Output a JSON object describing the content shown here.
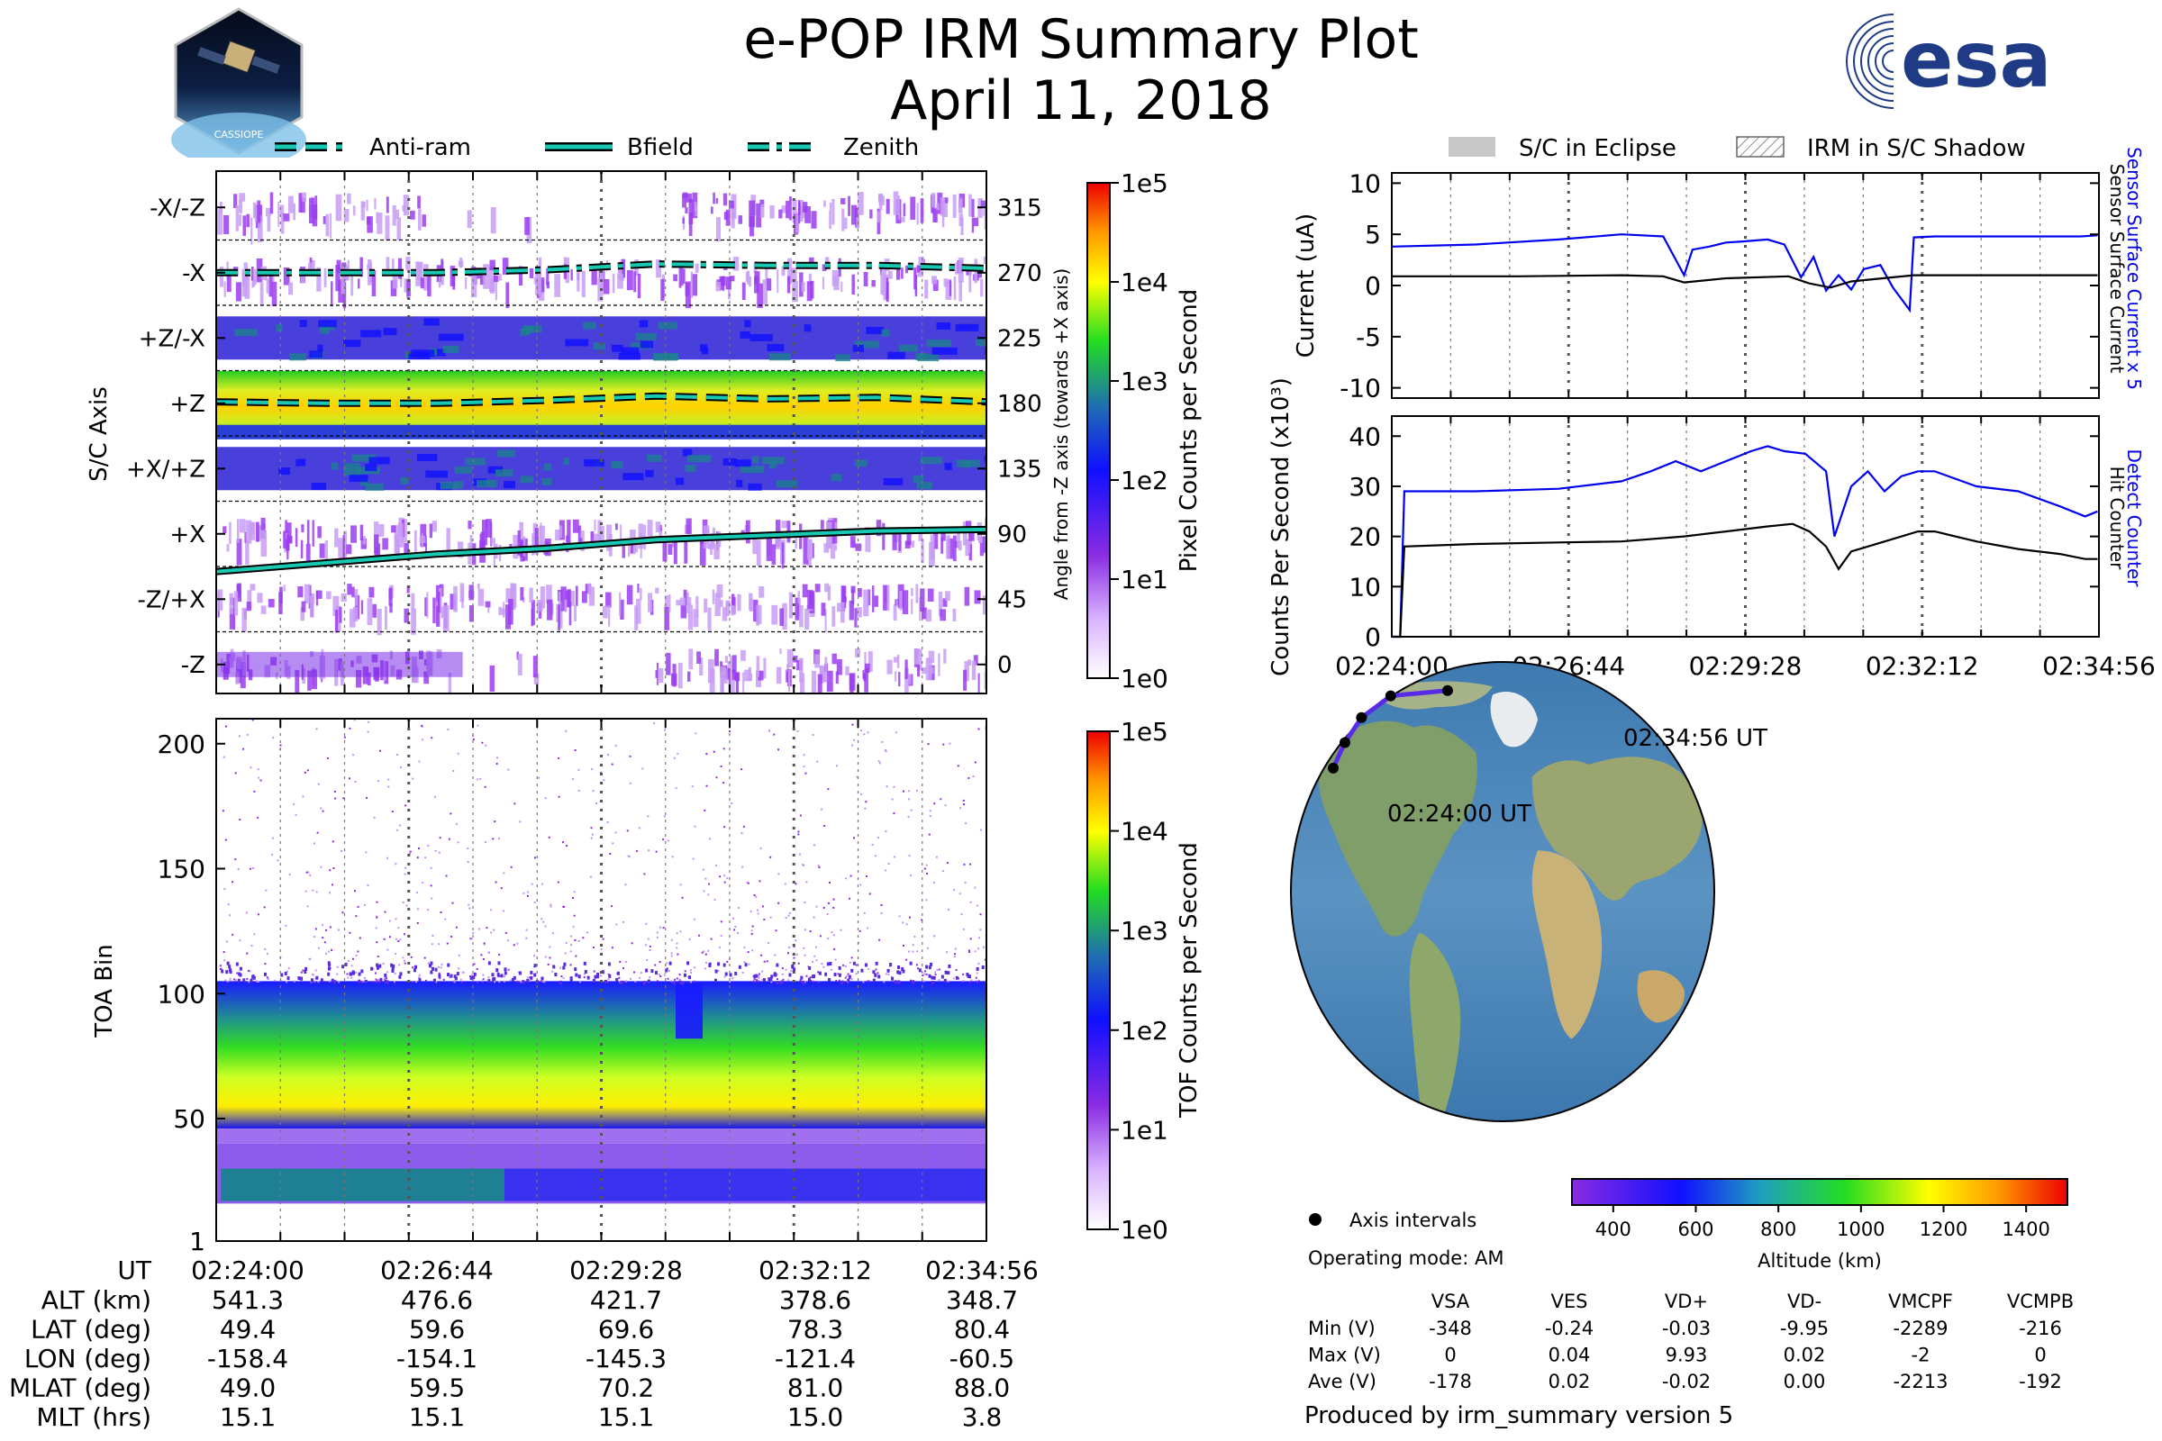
{
  "header": {
    "title": "e-POP IRM Summary Plot",
    "date": "April 11, 2018"
  },
  "logos": {
    "left_text": "CASSIOPE",
    "esa_text": "esa"
  },
  "colors": {
    "cyan_line": "#17c9b3",
    "blue_line": "#0000ee",
    "esa_blue": "#1f3b86"
  },
  "legend_top": {
    "items": [
      "Anti-ram",
      "Bfield",
      "Zenith"
    ]
  },
  "legend_right": {
    "items": [
      "S/C in Eclipse",
      "IRM in S/C Shadow"
    ]
  },
  "time_ticks": [
    "02:24:00",
    "02:26:44",
    "02:29:28",
    "02:32:12",
    "02:34:56"
  ],
  "ephemeris": {
    "ut_label": "UT",
    "rows": [
      {
        "label": "ALT (km)",
        "values": [
          "541.3",
          "476.6",
          "421.7",
          "378.6",
          "348.7"
        ]
      },
      {
        "label": "LAT (deg)",
        "values": [
          "49.4",
          "59.6",
          "69.6",
          "78.3",
          "80.4"
        ]
      },
      {
        "label": "LON (deg)",
        "values": [
          "-158.4",
          "-154.1",
          "-145.3",
          "-121.4",
          "-60.5"
        ]
      },
      {
        "label": "MLAT (deg)",
        "values": [
          "49.0",
          "59.5",
          "70.2",
          "81.0",
          "88.0"
        ]
      },
      {
        "label": "MLT (hrs)",
        "values": [
          "15.1",
          "15.1",
          "15.1",
          "15.0",
          "3.8"
        ]
      }
    ]
  },
  "chart_data": [
    {
      "type": "heatmap",
      "name": "pixel-counts",
      "ylabel": "S/C Axis",
      "y_categories": [
        "-Z",
        "-Z/+X",
        "+X",
        "+X/+Z",
        "+Z",
        "+Z/-X",
        "-X",
        "-X/-Z"
      ],
      "right_axis_label": "Angle from -Z axis (towards +X axis)",
      "right_ticks": [
        0,
        45,
        90,
        135,
        180,
        225,
        270,
        315
      ],
      "right_ylim": [
        -20,
        340
      ],
      "colorbar_label": "Pixel Counts per Second",
      "colorbar_ticks": [
        "1e0",
        "1e1",
        "1e2",
        "1e3",
        "1e4",
        "1e5"
      ],
      "lines": [
        {
          "name": "Anti-ram",
          "y_deg": [
            181,
            180,
            180,
            182,
            185,
            183,
            184,
            181
          ]
        },
        {
          "name": "Bfield",
          "y_deg": [
            64,
            70,
            76,
            80,
            86,
            89,
            92,
            93
          ]
        },
        {
          "name": "Zenith",
          "y_deg": [
            270,
            270,
            270,
            272,
            276,
            275,
            275,
            273
          ]
        }
      ]
    },
    {
      "type": "heatmap",
      "name": "toa-spectrogram",
      "ylabel": "TOA Bin",
      "y_ticks": [
        1,
        50,
        100,
        150,
        200
      ],
      "ylim": [
        1,
        210
      ],
      "colorbar_label": "TOF Counts per Second",
      "colorbar_ticks": [
        "1e0",
        "1e1",
        "1e2",
        "1e3",
        "1e4",
        "1e5"
      ]
    },
    {
      "type": "line",
      "name": "current",
      "ylabel": "Current (uA)",
      "ylim": [
        -11,
        11
      ],
      "y_ticks": [
        -10,
        -5,
        0,
        5,
        10
      ],
      "right_labels": [
        "Sensor Surface Current x 5",
        "Sensor Surface Current"
      ],
      "series": [
        {
          "name": "Sensor Surface Current x 5",
          "t": [
            0,
            2,
            4,
            5.5,
            6.5,
            7,
            7.2,
            7.6,
            8,
            8.4,
            9,
            9.4,
            9.8,
            10.1,
            10.4,
            10.7,
            11,
            11.3,
            11.7,
            12,
            12.4,
            12.5,
            13,
            14,
            15.5,
            16.5,
            16.9
          ],
          "values": [
            3.8,
            4.0,
            4.5,
            5.0,
            4.8,
            1.0,
            3.5,
            3.8,
            4.2,
            4.3,
            4.5,
            4.0,
            0.8,
            2.8,
            -0.5,
            1.0,
            -0.4,
            1.6,
            2.0,
            -0.2,
            -2.4,
            4.7,
            4.8,
            4.8,
            4.8,
            4.8,
            4.9
          ]
        },
        {
          "name": "Sensor Surface Current",
          "t": [
            0,
            3,
            5.5,
            6.5,
            7,
            8,
            9.5,
            10,
            10.5,
            11,
            12,
            12.5,
            16.9
          ],
          "values": [
            0.9,
            0.9,
            1.0,
            0.9,
            0.3,
            0.7,
            0.9,
            0.2,
            -0.2,
            0.4,
            0.8,
            1.0,
            1.0
          ]
        }
      ]
    },
    {
      "type": "line",
      "name": "counts",
      "ylabel": "Counts Per Second (x10³)",
      "ylim": [
        0,
        44
      ],
      "y_ticks": [
        0,
        10,
        20,
        30,
        40
      ],
      "x_ticks": [
        "02:24:00",
        "02:26:44",
        "02:29:28",
        "02:32:12",
        "02:34:56"
      ],
      "right_labels": [
        "Detect Counter",
        "Hit Counter"
      ],
      "series": [
        {
          "name": "Detect Counter",
          "t": [
            0,
            0.2,
            0.3,
            2,
            4,
            5.5,
            6.2,
            6.8,
            7.4,
            8,
            8.6,
            9,
            9.4,
            9.9,
            10.4,
            10.6,
            11,
            11.4,
            11.8,
            12.2,
            12.6,
            13,
            14,
            15,
            16,
            16.6,
            16.9
          ],
          "values": [
            0,
            0,
            29,
            29,
            29.5,
            31,
            33,
            35,
            33,
            35,
            37,
            38,
            37,
            36.5,
            33,
            20,
            30,
            33,
            29,
            32,
            33,
            33,
            30,
            29,
            26,
            24,
            25
          ]
        },
        {
          "name": "Hit Counter",
          "t": [
            0,
            0.2,
            0.3,
            2,
            4,
            5.5,
            7,
            8,
            9,
            9.6,
            10,
            10.4,
            10.7,
            11,
            11.4,
            12,
            12.6,
            13,
            14,
            15,
            16,
            16.6,
            16.9
          ],
          "values": [
            0,
            0,
            18,
            18.5,
            18.8,
            19,
            20,
            21,
            22,
            22.5,
            21,
            18,
            13.5,
            17,
            18,
            19.5,
            21,
            21,
            19,
            17.5,
            16.5,
            15.5,
            15.5
          ]
        }
      ]
    }
  ],
  "map": {
    "start_label": "02:24:00 UT",
    "end_label": "02:34:56 UT",
    "track_points": [
      [
        -158.4,
        49.4
      ],
      [
        -154.1,
        59.6
      ],
      [
        -145.3,
        69.6
      ],
      [
        -121.4,
        78.3
      ],
      [
        -60.5,
        80.4
      ]
    ],
    "legend_label": "Axis intervals",
    "operating_mode": "Operating mode: AM",
    "altitude_label": "Altitude (km)",
    "altitude_ticks": [
      400,
      600,
      800,
      1000,
      1200,
      1400
    ],
    "altitude_range": [
      300,
      1500
    ]
  },
  "voltages": {
    "columns": [
      "VSA",
      "VES",
      "VD+",
      "VD-",
      "VMCPF",
      "VCMPB"
    ],
    "rows": [
      {
        "label": "Min (V)",
        "values": [
          "-348",
          "-0.24",
          "-0.03",
          "-9.95",
          "-2289",
          "-216"
        ]
      },
      {
        "label": "Max (V)",
        "values": [
          "0",
          "0.04",
          "9.93",
          "0.02",
          "-2",
          "0"
        ]
      },
      {
        "label": "Ave (V)",
        "values": [
          "-178",
          "0.02",
          "-0.02",
          "0.00",
          "-2213",
          "-192"
        ]
      }
    ]
  },
  "footer": {
    "produced_by": "Produced by irm_summary version 5"
  }
}
